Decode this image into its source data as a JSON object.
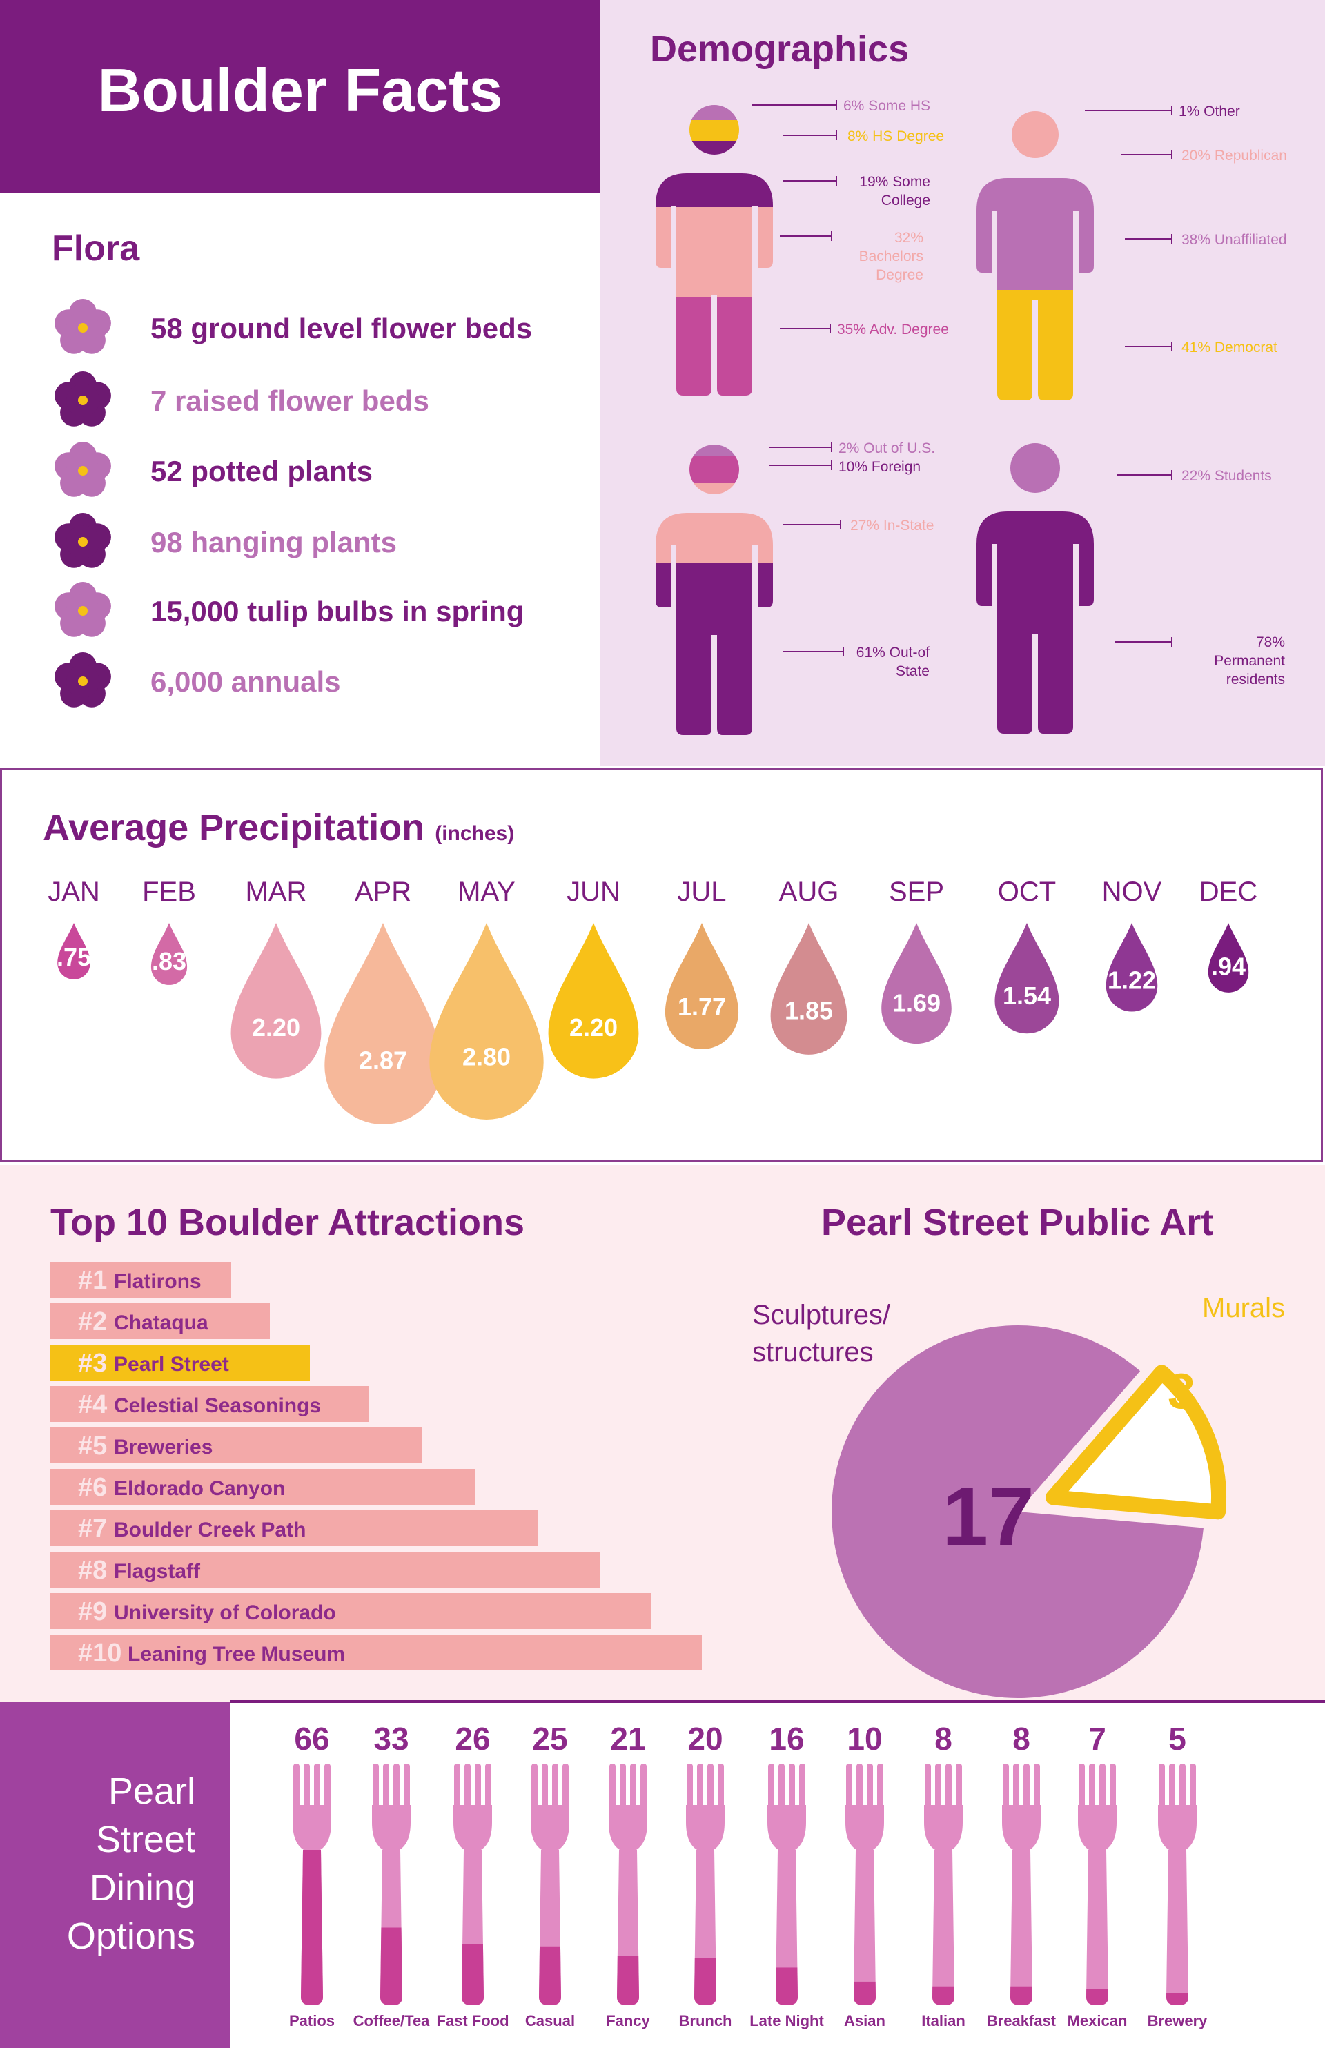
{
  "header": {
    "title": "Boulder Facts"
  },
  "flora": {
    "title": "Flora",
    "items": [
      {
        "text": "58 ground level flower beds",
        "color": "#7b1c7e",
        "icon": "flower-icon",
        "petal": "#b970b4"
      },
      {
        "text": "7 raised flower beds",
        "color": "#b970b4",
        "icon": "flower-icon",
        "petal": "#6d1a71"
      },
      {
        "text": "52 potted plants",
        "color": "#7b1c7e",
        "icon": "flower-icon",
        "petal": "#b970b4"
      },
      {
        "text": "98 hanging plants",
        "color": "#b970b4",
        "icon": "flower-icon",
        "petal": "#6d1a71"
      },
      {
        "text": "15,000 tulip bulbs in spring",
        "color": "#7b1c7e",
        "icon": "flower-icon",
        "petal": "#b970b4"
      },
      {
        "text": "6,000 annuals",
        "color": "#b970b4",
        "icon": "flower-icon",
        "petal": "#6d1a71"
      }
    ]
  },
  "demographics": {
    "title": "Demographics",
    "education": [
      {
        "text": "6% Some HS",
        "color": "#b970b4"
      },
      {
        "text": "8% HS Degree",
        "color": "#f5c116"
      },
      {
        "text": "19% Some College",
        "color": "#7b1c7e"
      },
      {
        "text": "32% Bachelors Degree",
        "color": "#f3a9a9"
      },
      {
        "text": "35% Adv. Degree",
        "color": "#c44a9a"
      }
    ],
    "politics": [
      {
        "text": "1% Other",
        "color": "#7b1c7e"
      },
      {
        "text": "20% Republican",
        "color": "#f3a9a9"
      },
      {
        "text": "38% Unaffiliated",
        "color": "#b970b4"
      },
      {
        "text": "41% Democrat",
        "color": "#f5c116"
      }
    ],
    "origin": [
      {
        "text": "2% Out of U.S.",
        "color": "#b970b4"
      },
      {
        "text": "10% Foreign",
        "color": "#7b1c7e"
      },
      {
        "text": "27% In-State",
        "color": "#f3a9a9"
      },
      {
        "text": "61% Out-of State",
        "color": "#7b1c7e"
      }
    ],
    "residency": [
      {
        "text": "22% Students",
        "color": "#b970b4"
      },
      {
        "text": "78% Permanent residents",
        "color": "#7b1c7e"
      }
    ]
  },
  "precipitation": {
    "title": "Average Precipitation",
    "unit": "(inches)"
  },
  "attractions": {
    "title": "Top 10 Boulder Attractions",
    "items": [
      {
        "rank": "#1",
        "name": "Flatirons",
        "highlight": false
      },
      {
        "rank": "#2",
        "name": "Chataqua",
        "highlight": false
      },
      {
        "rank": "#3",
        "name": "Pearl Street",
        "highlight": true
      },
      {
        "rank": "#4",
        "name": "Celestial Seasonings",
        "highlight": false
      },
      {
        "rank": "#5",
        "name": "Breweries",
        "highlight": false
      },
      {
        "rank": "#6",
        "name": "Eldorado Canyon",
        "highlight": false
      },
      {
        "rank": "#7",
        "name": "Boulder Creek Path",
        "highlight": false
      },
      {
        "rank": "#8",
        "name": "Flagstaff",
        "highlight": false
      },
      {
        "rank": "#9",
        "name": "University of Colorado",
        "highlight": false
      },
      {
        "rank": "#10",
        "name": "Leaning Tree Museum",
        "highlight": false
      }
    ],
    "bar_color": "#f3a9a9",
    "highlight_color": "#f5c116"
  },
  "public_art": {
    "title": "Pearl Street Public Art"
  },
  "dining": {
    "title_lines": [
      "Pearl",
      "Street",
      "Dining",
      "Options"
    ]
  },
  "chart_data": [
    {
      "type": "bar",
      "title": "Average Precipitation",
      "ylabel": "(inches)",
      "categories": [
        "JAN",
        "FEB",
        "MAR",
        "APR",
        "MAY",
        "JUN",
        "JUL",
        "AUG",
        "SEP",
        "OCT",
        "NOV",
        "DEC"
      ],
      "values": [
        0.75,
        0.83,
        2.2,
        2.87,
        2.8,
        2.2,
        1.77,
        1.85,
        1.69,
        1.54,
        1.22,
        0.94
      ],
      "value_labels": [
        ".75",
        ".83",
        "2.20",
        "2.87",
        "2.80",
        "2.20",
        "1.77",
        "1.85",
        "1.69",
        "1.54",
        "1.22",
        ".94"
      ],
      "colors": [
        "#c9489a",
        "#d36aa6",
        "#eca3b2",
        "#f6b89a",
        "#f7c06a",
        "#f8c118",
        "#e9a867",
        "#d38c90",
        "#bb6fae",
        "#9c4798",
        "#8f3793",
        "#7a1c7e"
      ]
    },
    {
      "type": "pie",
      "title": "Pearl Street Public Art",
      "categories": [
        "Sculptures/ structures",
        "Murals"
      ],
      "values": [
        17,
        3
      ],
      "colors": [
        "#bb72b3",
        "#f5c116"
      ]
    },
    {
      "type": "bar",
      "title": "Pearl Street Dining Options",
      "categories": [
        "Patios",
        "Coffee/Tea",
        "Fast Food",
        "Casual",
        "Fancy",
        "Brunch",
        "Late Night",
        "Asian",
        "Italian",
        "Breakfast",
        "Mexican",
        "Brewery"
      ],
      "values": [
        66,
        33,
        26,
        25,
        21,
        20,
        16,
        10,
        8,
        8,
        7,
        5
      ]
    },
    {
      "type": "bar",
      "title": "Top 10 Boulder Attractions",
      "categories": [
        "Flatirons",
        "Chataqua",
        "Pearl Street",
        "Celestial Seasonings",
        "Breweries",
        "Eldorado Canyon",
        "Boulder Creek Path",
        "Flagstaff",
        "University of Colorado",
        "Leaning Tree Museum"
      ],
      "values": [
        1,
        2,
        3,
        4,
        5,
        6,
        7,
        8,
        9,
        10
      ]
    }
  ]
}
